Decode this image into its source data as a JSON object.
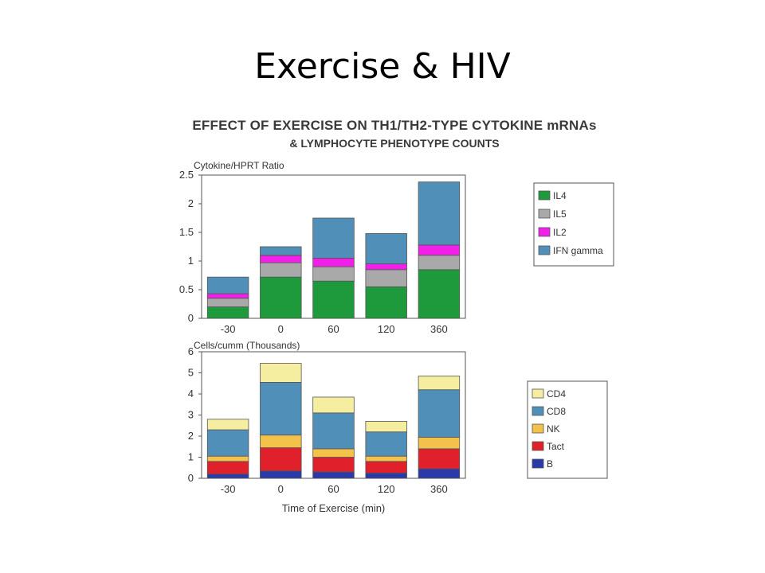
{
  "slide": {
    "title": "Exercise & HIV"
  },
  "figure": {
    "title_line1": "EFFECT OF EXERCISE ON TH1/TH2-TYPE CYTOKINE mRNAs",
    "title_line2": "& LYMPHOCYTE PHENOTYPE COUNTS"
  },
  "colors": {
    "IL4": "#1e9a3c",
    "IL5": "#a9a9a9",
    "IL2": "#f020e8",
    "IFN gamma": "#4f8fb8",
    "CD4": "#f5eea0",
    "CD8": "#4f8fb8",
    "NK": "#f2c24a",
    "Tact": "#e0202a",
    "B": "#2a3aa8"
  },
  "chart_data": [
    {
      "type": "bar",
      "stacked": true,
      "ylabel": "Cytokine/HPRT Ratio",
      "xlabel": "",
      "categories": [
        "-30",
        "0",
        "60",
        "120",
        "360"
      ],
      "ylim": [
        0,
        2.5
      ],
      "yticks": [
        "0",
        "0.5",
        "1",
        "1.5",
        "2",
        "2.5"
      ],
      "grid": false,
      "legend_position": "right",
      "series": [
        {
          "name": "IL4",
          "values": [
            0.2,
            0.72,
            0.65,
            0.55,
            0.85
          ]
        },
        {
          "name": "IL5",
          "values": [
            0.15,
            0.25,
            0.25,
            0.3,
            0.25
          ]
        },
        {
          "name": "IL2",
          "values": [
            0.08,
            0.13,
            0.15,
            0.1,
            0.18
          ]
        },
        {
          "name": "IFN gamma",
          "values": [
            0.29,
            0.15,
            0.7,
            0.53,
            1.1
          ]
        }
      ]
    },
    {
      "type": "bar",
      "stacked": true,
      "ylabel": "Cells/cumm (Thousands)",
      "xlabel": "Time of Exercise (min)",
      "categories": [
        "-30",
        "0",
        "60",
        "120",
        "360"
      ],
      "ylim": [
        0,
        6
      ],
      "yticks": [
        "0",
        "1",
        "2",
        "3",
        "4",
        "5",
        "6"
      ],
      "grid": false,
      "legend_position": "right",
      "series": [
        {
          "name": "B",
          "values": [
            0.2,
            0.35,
            0.3,
            0.25,
            0.45
          ]
        },
        {
          "name": "Tact",
          "values": [
            0.6,
            1.1,
            0.7,
            0.55,
            0.95
          ]
        },
        {
          "name": "NK",
          "values": [
            0.25,
            0.6,
            0.4,
            0.25,
            0.55
          ]
        },
        {
          "name": "CD8",
          "values": [
            1.25,
            2.5,
            1.7,
            1.15,
            2.25
          ]
        },
        {
          "name": "CD4",
          "values": [
            0.5,
            0.9,
            0.75,
            0.5,
            0.65
          ]
        }
      ]
    }
  ]
}
